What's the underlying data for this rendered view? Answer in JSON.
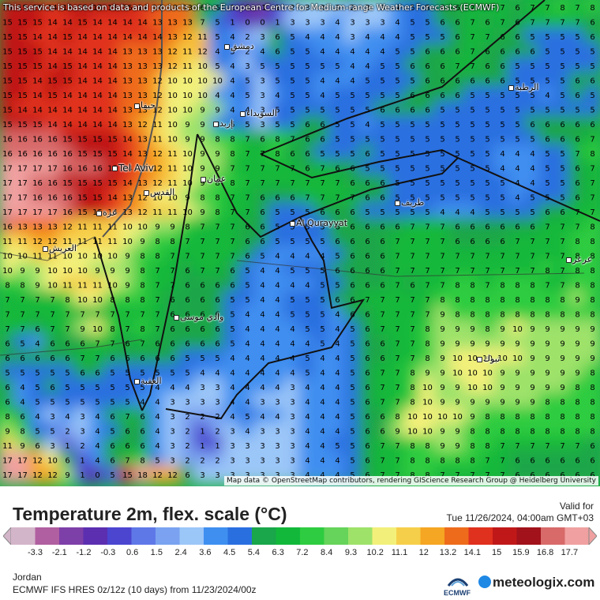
{
  "map": {
    "notice": "This service is based on data and products of the European Centre for Medium-range Weather Forecasts (ECMWF)",
    "attribution": "Map data © OpenStreetMap contributors, rendering GIScience Research Group @ Heidelberg University",
    "cities": [
      {
        "name": "Tel Aviv"
      },
      {
        "name": "Al Qurayyat"
      },
      {
        "name": "دمشق"
      },
      {
        "name": "عمان"
      },
      {
        "name": "القدس"
      },
      {
        "name": "إربد"
      },
      {
        "name": "الرطبة"
      },
      {
        "name": "طريف"
      },
      {
        "name": "عرعر"
      },
      {
        "name": "العقبة"
      },
      {
        "name": "وادي موسى"
      },
      {
        "name": "العريش"
      },
      {
        "name": "غزة"
      },
      {
        "name": "حيفا"
      },
      {
        "name": "السويداء"
      },
      {
        "name": "تبوك"
      }
    ],
    "grid_rows": [
      "15 15 15 14 15 15 15 15 15 14 14 13 13 6 6 1 -0 -1 1 2 3 3 3 2 3 3 4 5 5 6 6 7 7 7 6 7 7 8 7 8",
      "15 15 15 14 14 15 14 14 14 14 13 13 13 7 5 1 -0 0 1 3 3 3 4 3 3 3 4 5 5 6 6 7 6 7 6 7 7 7 7 6",
      "15 15 14 14 15 14 14 14 14 14 14 13 12 11 5 4 2 3 6 5 4 4 4 3 4 4 4 5 5 5 6 7 7 6 6 5 5 5 5 6",
      "15 15 15 14 14 14 14 14 13 13 13 12 11 12 4 5 2 4 6 5 5 4 4 4 4 4 5 5 6 6 6 7 6 6 6 6 5 5 5 5",
      "15 15 15 14 15 14 14 14 13 13 13 12 11 10 5 4 3 5 5 5 5 5 5 4 4 5 5 6 6 6 7 7 6 6 5 5 5 5 5 5",
      "15 15 14 15 15 14 14 14 13 13 12 10 10 10 10 4 5 3 5 5 5 4 4 4 5 5 5 5 6 6 6 6 6 6 5 5 5 5 6 6",
      "15 15 14 15 14 14 14 14 13 13 12 10 10 10 4 4 5 3 4 5 5 4 5 5 5 5 5 6 6 6 6 5 5 5 5 5 4 5 6 5",
      "15 14 14 14 14 14 14 14 13 13 12 10 10 9 9 4 4 3 5 5 5 5 5 5 5 6 6 6 6 5 5 5 5 5 5 5 5 5 5 5",
      "15 15 15 14 14 14 14 14 13 12 11 10 9 9 4 5 5 3 5 5 6 6 5 5 4 5 5 5 5 5 5 5 5 5 5 6 6 6 6 6",
      "16 16 16 16 15 15 15 15 14 13 11 10 9 9 8 8 7 6 8 7 6 6 5 5 5 5 5 5 5 5 5 5 5 5 5 5 6 6 6 7",
      "16 16 16 16 16 15 15 15 14 13 12 11 10 9 9 8 7 7 8 6 6 5 5 5 6 5 5 5 5 5 5 5 5 4 4 4 5 5 7 8",
      "17 17 17 17 16 16 16 15 14 13 12 11 10 9 9 7 7 7 7 7 6 7 6 6 5 5 5 5 5 5 5 5 5 4 4 4 5 5 6 7",
      "17 17 16 16 15 15 15 15 14 13 12 11 10 9 8 8 7 7 7 7 7 7 7 6 6 6 5 5 5 5 5 5 5 5 4 4 5 5 6 7",
      "17 17 16 16 16 15 15 14 13 12 10 10 9 8 8 7 7 6 6 6 7 7 7 7 6 6 5 5 5 5 5 5 5 5 4 5 5 5 6 7",
      "17 17 17 17 16 15 15 14 13 12 11 11 10 9 8 7 7 6 5 5 5 6 6 6 5 5 5 5 5 4 4 4 5 5 5 5 6 6 7 7",
      "16 13 13 13 12 11 11 11 10 10 9 9 8 7 7 7 6 6 5 5 5 5 6 6 6 6 6 7 7 7 6 6 6 6 6 6 7 7 7 8",
      "11 11 12 12 11 11 11 11 10 9 8 8 7 7 7 7 6 6 5 5 5 5 6 6 6 6 7 7 7 7 6 6 6 6 7 7 7 7 8 8",
      "10 10 11 11 10 10 10 10 9 8 8 7 7 7 7 7 6 5 4 4 4 4 5 6 6 6 7 7 7 7 7 7 7 7 7 7 7 7 8 8",
      "10 9 9 10 10 10 9 9 9 8 7 7 6 7 7 6 5 4 4 5 5 5 6 6 6 6 7 7 7 7 7 7 7 7 7 7 8 7 8 8",
      "8 8 9 10 11 11 11 10 9 8 7 7 6 6 6 6 5 4 4 4 4 5 5 6 6 6 7 6 7 7 8 8 7 8 8 8 7 7 8 8",
      "7 7 7 7 8 10 10 8 8 8 7 6 6 6 6 5 5 4 4 5 5 5 6 6 7 7 7 7 7 8 8 8 8 8 8 8 8 8 9 8",
      "7 7 7 7 7 7 7 7 7 7 7 6 6 6 6 5 4 4 4 5 5 5 4 6 6 7 7 7 7 9 8 8 8 8 8 8 8 8 8 8",
      "7 7 6 7 7 9 10 8 7 8 7 6 6 6 6 5 4 4 4 4 5 5 4 5 6 7 7 7 8 9 9 9 8 9 10 9 9 9 9 9",
      "6 5 4 6 6 6 7 7 6 7 6 6 6 6 6 5 4 4 4 4 4 5 4 5 6 6 7 7 8 9 9 9 9 9 9 9 9 9 9 9",
      "6 6 6 6 6 7 7 6 6 6 6 6 5 5 5 4 4 4 4 4 5 4 4 5 6 6 7 7 8 9 10 10 10 10 10 9 9 9 9 9",
      "5 5 5 5 5 6 6 5 5 5 5 5 5 4 4 4 4 4 4 4 5 4 4 5 6 7 7 8 9 9 10 10 10 9 9 9 9 9 9 8",
      "6 4 5 6 5 5 5 5 5 5 4 4 4 3 3 4 4 4 4 3 4 4 4 5 6 7 7 8 10 9 9 10 10 9 9 9 9 9 8 8",
      "6 4 5 5 5 5 5 5 5 4 4 3 3 3 3 4 4 3 3 3 4 4 4 5 6 7 7 8 10 9 9 9 9 9 9 9 8 8 8 8",
      "8 6 4 3 4 3 4 6 7 6 4 3 2 2 2 4 5 4 4 3 4 4 4 5 6 6 8 10 10 10 10 9 8 8 8 8 8 8 8 8",
      "9 8 5 5 2 3 4 5 6 6 4 3 2 1 2 3 4 3 3 3 4 4 4 5 6 6 9 10 10 9 9 8 8 8 8 8 8 8 8 8",
      "11 9 6 3 1 2 4 6 6 6 4 3 2 1 1 3 3 3 3 3 4 4 5 5 6 7 7 8 8 9 9 8 8 7 7 7 7 7 7 6",
      "17 17 12 10 6 1 4 6 7 8 5 3 2 2 2 3 3 3 3 3 4 4 4 5 6 7 7 8 8 8 8 8 7 7 6 6 6 6 6 6",
      "17 17 12 12 9 1 0 5 15 18 12 12 6 3 3 3 3 3 3 3 4 4 4 5 6 7 7 8 8 7 7 7 7 7 6 6 6 6 6 6"
    ]
  },
  "panel": {
    "title": "Temperature 2m, flex. scale (°C)",
    "valid_label": "Valid for",
    "valid_time": "Tue 11/26/2024, 04:00am GMT+03",
    "region": "Jordan",
    "model": "ECMWF IFS HRES 0z/12z (10 days)  from  11/23/2024/00z",
    "ecmwf_label": "ECMWF",
    "brand": "meteologix.com"
  },
  "legend": {
    "labels": [
      "-3.3",
      "-2.1",
      "-1.2",
      "-0.3",
      "0.6",
      "1.5",
      "2.4",
      "3.6",
      "4.5",
      "5.4",
      "6.3",
      "7.2",
      "8.4",
      "9.3",
      "10.2",
      "11.1",
      "12",
      "13.2",
      "14.1",
      "15",
      "15.9",
      "16.8",
      "17.7"
    ],
    "colors": [
      "#d3b5c9",
      "#b05fa0",
      "#7d3fa8",
      "#5b2fb0",
      "#4b45d0",
      "#5f78e8",
      "#7aa2f0",
      "#9bc6f8",
      "#3f8ff0",
      "#2a6fe0",
      "#1aa64a",
      "#12b83a",
      "#2ecc40",
      "#66d35a",
      "#9ee26a",
      "#f2f07a",
      "#f6cf4a",
      "#f5a623",
      "#ee6b1c",
      "#e0301e",
      "#c01818",
      "#a1121a",
      "#d86a6a",
      "#f0a0a0"
    ]
  },
  "colors": {
    "cold": "#2a6fe0",
    "cool": "#1ba640",
    "mild": "#f2f07a",
    "warm": "#e0301e",
    "hot": "#c01818"
  }
}
